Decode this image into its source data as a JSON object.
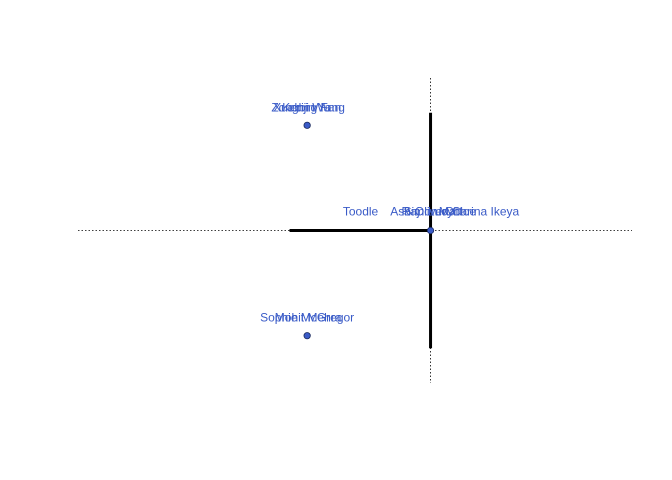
{
  "chart_data": {
    "type": "scatter",
    "title": "",
    "xlabel": "",
    "ylabel": "",
    "xlim": [
      -1.4,
      0.8
    ],
    "ylim": [
      -1.45,
      1.45
    ],
    "grid": false,
    "legend": "none",
    "colors": {
      "point_fill": "#3a5bc7",
      "point_stroke": "#1a2a5e",
      "label": "#3a5bc7",
      "axis_lines": "#000000",
      "reference_lines": "#000000"
    },
    "axis_segments": {
      "horizontal": [
        -0.56,
        0.0
      ],
      "vertical": [
        -1.12,
        1.12
      ]
    },
    "points": [
      {
        "x": -0.49,
        "y": 1.0,
        "labels": [
          "Xuebing Fan",
          "Zongbin Yang",
          "Kenji Wu"
        ]
      },
      {
        "x": -0.49,
        "y": -1.0,
        "labels": [
          "Sophie McGregor",
          "Mohit Mehra"
        ]
      },
      {
        "x": 0.0,
        "y": 0.0,
        "labels": [
          "Toodle",
          "Carina Ikeya",
          "Ash",
          "Raj",
          "Simon",
          "Oliver",
          "Lucy",
          "Matt",
          "Chloe"
        ]
      }
    ]
  }
}
